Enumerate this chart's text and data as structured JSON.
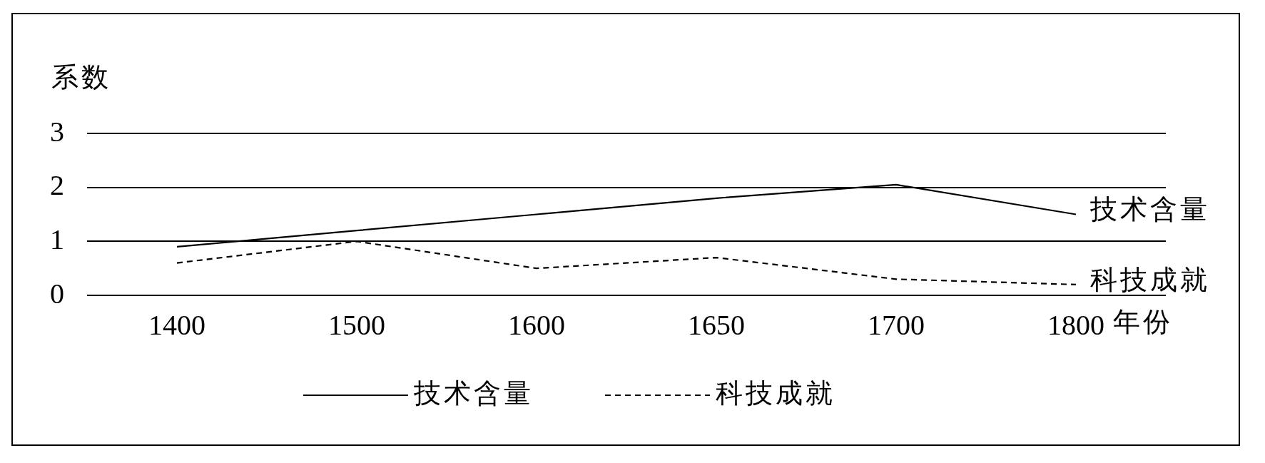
{
  "chart_data": {
    "type": "line",
    "xlabel": "年份",
    "ylabel": "系数",
    "categories": [
      "1400",
      "1500",
      "1600",
      "1650",
      "1700",
      "1800"
    ],
    "series": [
      {
        "name": "技术含量",
        "color": "#000000",
        "line_style": "solid",
        "values": [
          0.9,
          1.2,
          1.5,
          1.8,
          2.05,
          1.5
        ]
      },
      {
        "name": "科技成就",
        "color": "#000000",
        "line_style": "dashed",
        "values": [
          0.6,
          1.0,
          0.5,
          0.7,
          0.3,
          0.2
        ]
      }
    ],
    "ylim": [
      0,
      3
    ],
    "yticks": [
      0,
      1,
      2,
      3
    ],
    "grid": "y",
    "legend": "bottom"
  }
}
